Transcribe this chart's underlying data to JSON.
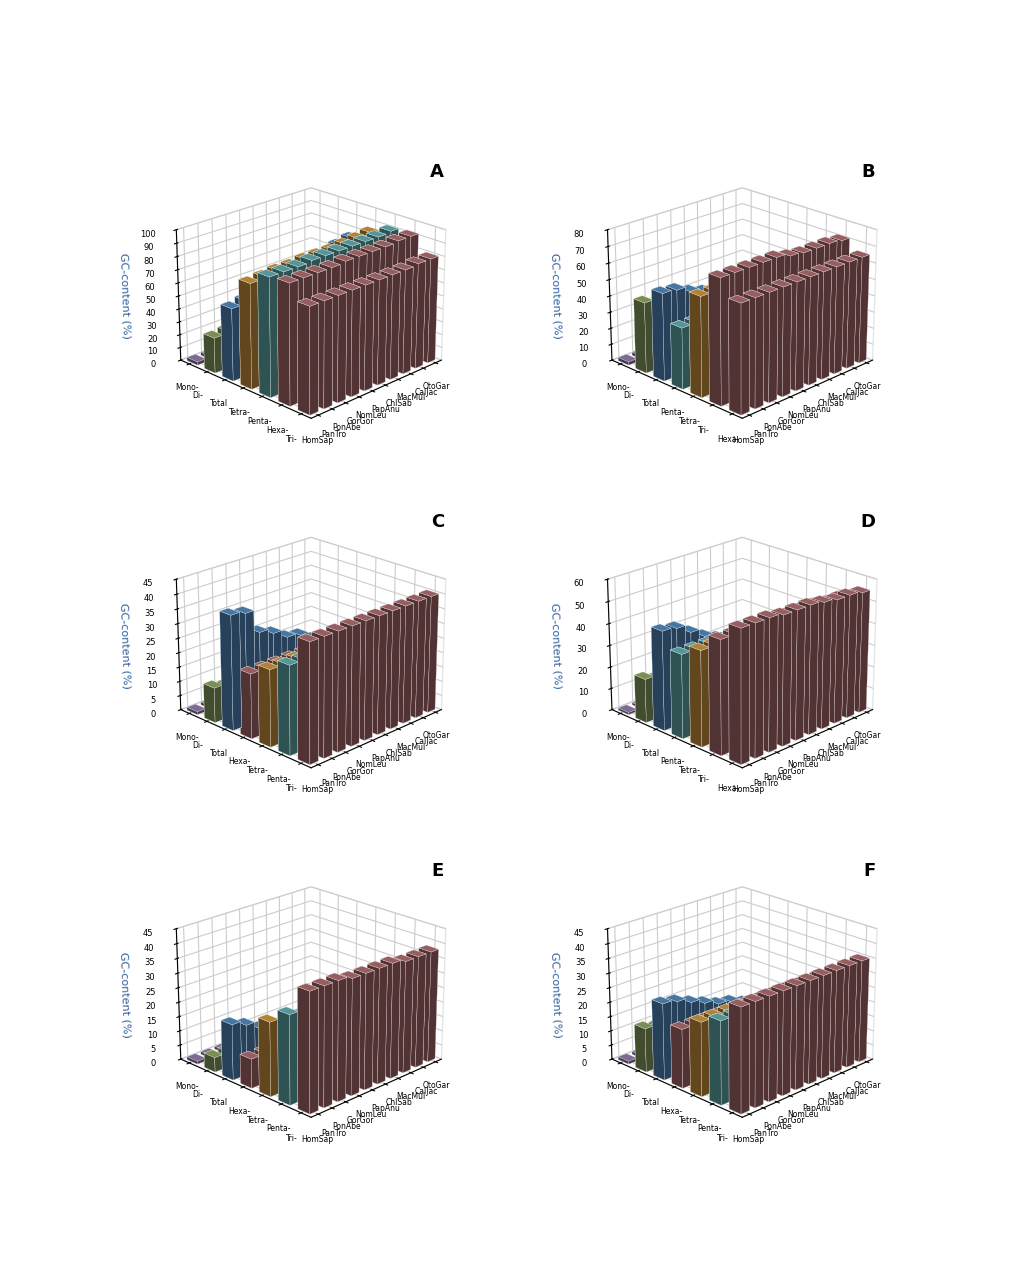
{
  "primates": [
    "OtoGar",
    "CalJac",
    "MacMul",
    "ChlSab",
    "PapAnu",
    "NomLeu",
    "GorGor",
    "PonAbe",
    "PanTro",
    "HomSap"
  ],
  "bar_colors": {
    "Mono-": "#a48cc0",
    "Di-": "#9db96e",
    "Total": "#5b9bd5",
    "Tetra-": "#e8a947",
    "Penta-": "#70c4c8",
    "Hexa-": "#c47a7e",
    "Tri-": "#c47a7e"
  },
  "panels": {
    "A": {
      "nuc_order": [
        "Mono-",
        "Di-",
        "Total",
        "Tetra-",
        "Penta-",
        "Hexa-",
        "Tri-"
      ],
      "ylim": [
        0,
        100
      ],
      "yticks": [
        0,
        10,
        20,
        30,
        40,
        50,
        60,
        70,
        80,
        90,
        100
      ],
      "data": {
        "Mono-": [
          2.5,
          2.5,
          2.5,
          2.5,
          2.5,
          2.5,
          2.5,
          2.5,
          2.5,
          2.5
        ],
        "Di-": [
          58,
          51,
          47,
          44,
          40,
          36,
          34,
          32,
          28,
          27
        ],
        "Total": [
          76,
          74,
          70,
          65,
          62,
          60,
          60,
          59,
          57,
          55
        ],
        "Tetra-": [
          85,
          84,
          83,
          82,
          82,
          82,
          81,
          81,
          80,
          79
        ],
        "Penta-": [
          91,
          90,
          90,
          90,
          90,
          90,
          90,
          89,
          89,
          89
        ],
        "Hexa-": [
          92,
          92,
          91,
          91,
          91,
          91,
          90,
          90,
          90,
          90
        ],
        "Tri-": [
          80,
          80,
          79,
          79,
          79,
          79,
          79,
          79,
          79,
          79
        ]
      }
    },
    "B": {
      "nuc_order": [
        "Mono-",
        "Di-",
        "Total",
        "Penta-",
        "Tetra-",
        "Tri-",
        "Hexa-"
      ],
      "ylim": [
        0,
        80
      ],
      "yticks": [
        0,
        10,
        20,
        30,
        40,
        50,
        60,
        70,
        80
      ],
      "data": {
        "Mono-": [
          2,
          2,
          2,
          2,
          2,
          2,
          2,
          2,
          2,
          2
        ],
        "Di-": [
          21,
          21,
          23,
          25,
          28,
          30,
          33,
          35,
          39,
          43
        ],
        "Total": [
          29,
          30,
          33,
          35,
          38,
          41,
          45,
          48,
          52,
          53
        ],
        "Penta-": [
          37,
          37,
          37,
          37,
          37,
          37,
          37,
          37,
          37,
          37
        ],
        "Tetra-": [
          60,
          60,
          60,
          60,
          60,
          60,
          60,
          60,
          60,
          60
        ],
        "Tri-": [
          71,
          72,
          72,
          72,
          73,
          75,
          75,
          75,
          75,
          75
        ],
        "Hexa-": [
          65,
          65,
          65,
          65,
          65,
          65,
          65,
          65,
          65,
          65
        ]
      }
    },
    "C": {
      "nuc_order": [
        "Mono-",
        "Di-",
        "Total",
        "Hexa-",
        "Tetra-",
        "Penta-",
        "Tri-"
      ],
      "ylim": [
        0,
        45
      ],
      "yticks": [
        0,
        5,
        10,
        15,
        20,
        25,
        30,
        35,
        40,
        45
      ],
      "data": {
        "Mono-": [
          1,
          1,
          1,
          1,
          1,
          1,
          1,
          1,
          1,
          1
        ],
        "Di-": [
          12,
          12,
          10,
          10,
          11,
          11,
          11,
          11,
          11,
          12
        ],
        "Total": [
          13,
          16,
          20,
          21,
          24,
          25,
          28,
          30,
          38,
          39
        ],
        "Hexa-": [
          21,
          22,
          22,
          22,
          22,
          22,
          22,
          22,
          22,
          22
        ],
        "Tetra-": [
          25,
          25,
          25,
          25,
          25,
          26,
          26,
          26,
          26,
          26
        ],
        "Penta-": [
          30,
          30,
          30,
          30,
          30,
          30,
          30,
          30,
          30,
          30
        ],
        "Tri-": [
          40,
          40,
          40,
          40,
          40,
          40,
          40,
          40,
          40,
          40
        ]
      }
    },
    "D": {
      "nuc_order": [
        "Mono-",
        "Di-",
        "Total",
        "Penta-",
        "Tetra-",
        "Tri-",
        "Hexa-"
      ],
      "ylim": [
        0,
        60
      ],
      "yticks": [
        0,
        10,
        20,
        30,
        40,
        50,
        60
      ],
      "data": {
        "Mono-": [
          1,
          1,
          1,
          1,
          1,
          1,
          1,
          1,
          1,
          1
        ],
        "Di-": [
          10,
          11,
          12,
          13,
          14,
          14,
          15,
          16,
          18,
          20
        ],
        "Total": [
          22,
          24,
          26,
          28,
          30,
          33,
          36,
          40,
          44,
          45
        ],
        "Penta-": [
          38,
          38,
          38,
          38,
          38,
          38,
          38,
          38,
          38,
          38
        ],
        "Tetra-": [
          43,
          43,
          43,
          43,
          43,
          43,
          43,
          43,
          43,
          43
        ],
        "Tri-": [
          50,
          50,
          51,
          51,
          51,
          51,
          51,
          51,
          51,
          51
        ],
        "Hexa-": [
          55,
          56,
          56,
          57,
          58,
          58,
          58,
          59,
          59,
          59
        ]
      }
    },
    "E": {
      "nuc_order": [
        "Mono-",
        "Di-",
        "Total",
        "Hexa-",
        "Tetra-",
        "Penta-",
        "Tri-"
      ],
      "ylim": [
        0,
        45
      ],
      "yticks": [
        0,
        5,
        10,
        15,
        20,
        25,
        30,
        35,
        40,
        45
      ],
      "data": {
        "Mono-": [
          1,
          1,
          1,
          1,
          1,
          1,
          1,
          1,
          1,
          1
        ],
        "Di-": [
          4,
          4,
          4,
          4,
          5,
          5,
          5,
          5,
          5,
          5
        ],
        "Total": [
          5,
          6,
          7,
          7,
          9,
          10,
          12,
          14,
          17,
          19
        ],
        "Hexa-": [
          10,
          10,
          10,
          10,
          10,
          10,
          10,
          10,
          10,
          10
        ],
        "Tetra-": [
          16,
          16,
          17,
          17,
          17,
          18,
          18,
          19,
          22,
          25
        ],
        "Penta-": [
          23,
          23,
          23,
          24,
          24,
          24,
          25,
          26,
          28,
          30
        ],
        "Tri-": [
          38,
          38,
          38,
          39,
          39,
          39,
          39,
          40,
          40,
          40
        ]
      }
    },
    "F": {
      "nuc_order": [
        "Mono-",
        "Di-",
        "Total",
        "Hexa-",
        "Tetra-",
        "Penta-",
        "Tri-"
      ],
      "ylim": [
        0,
        45
      ],
      "yticks": [
        0,
        5,
        10,
        15,
        20,
        25,
        30,
        35,
        40,
        45
      ],
      "data": {
        "Mono-": [
          1,
          1,
          1,
          1,
          1,
          1,
          1,
          1,
          1,
          1
        ],
        "Di-": [
          6,
          7,
          8,
          9,
          10,
          11,
          12,
          13,
          14,
          15
        ],
        "Total": [
          10,
          12,
          14,
          16,
          18,
          19,
          21,
          23,
          25,
          26
        ],
        "Hexa-": [
          20,
          20,
          20,
          20,
          20,
          20,
          20,
          20,
          20,
          20
        ],
        "Tetra-": [
          25,
          25,
          25,
          25,
          25,
          25,
          25,
          25,
          25,
          25
        ],
        "Penta-": [
          28,
          28,
          28,
          28,
          28,
          28,
          28,
          28,
          28,
          28
        ],
        "Tri-": [
          35,
          35,
          35,
          35,
          35,
          35,
          35,
          35,
          35,
          35
        ]
      }
    }
  }
}
